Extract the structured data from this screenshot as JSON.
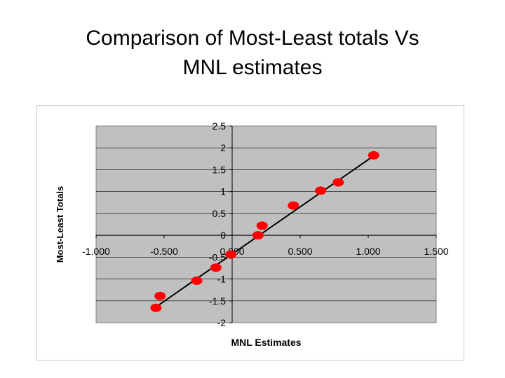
{
  "slide": {
    "title_line1": "Comparison of Most-Least totals Vs",
    "title_line2": "MNL estimates"
  },
  "chart_data": {
    "type": "scatter",
    "title": "",
    "xlabel": "MNL Estimates",
    "ylabel": "Most-Least Totals",
    "xlim": [
      -1.0,
      1.5
    ],
    "ylim": [
      -2,
      2.5
    ],
    "x_ticks": [
      "-1.000",
      "-0.500",
      "0.000",
      "0.500",
      "1.000",
      "1.500"
    ],
    "y_ticks": [
      "-2",
      "-1.5",
      "-1",
      "-0.5",
      "0",
      "0.5",
      "1",
      "1.5",
      "2",
      "2.5"
    ],
    "grid": "horizontal",
    "colors": {
      "plot_area": "#c0c0c0",
      "points": "#ff0000",
      "trendline": "#000000",
      "gridline": "#000000"
    },
    "series": [
      {
        "points": [
          {
            "x": -0.56,
            "y": -1.66
          },
          {
            "x": -0.53,
            "y": -1.39
          },
          {
            "x": -0.26,
            "y": -1.04
          },
          {
            "x": -0.12,
            "y": -0.74
          },
          {
            "x": -0.01,
            "y": -0.44
          },
          {
            "x": 0.19,
            "y": 0.0
          },
          {
            "x": 0.22,
            "y": 0.22
          },
          {
            "x": 0.45,
            "y": 0.68
          },
          {
            "x": 0.65,
            "y": 1.02
          },
          {
            "x": 0.78,
            "y": 1.21
          },
          {
            "x": 1.04,
            "y": 1.83
          }
        ]
      }
    ],
    "trendline": {
      "x_start": -0.56,
      "y_start": -1.64,
      "x_end": 1.06,
      "y_end": 1.86
    }
  }
}
